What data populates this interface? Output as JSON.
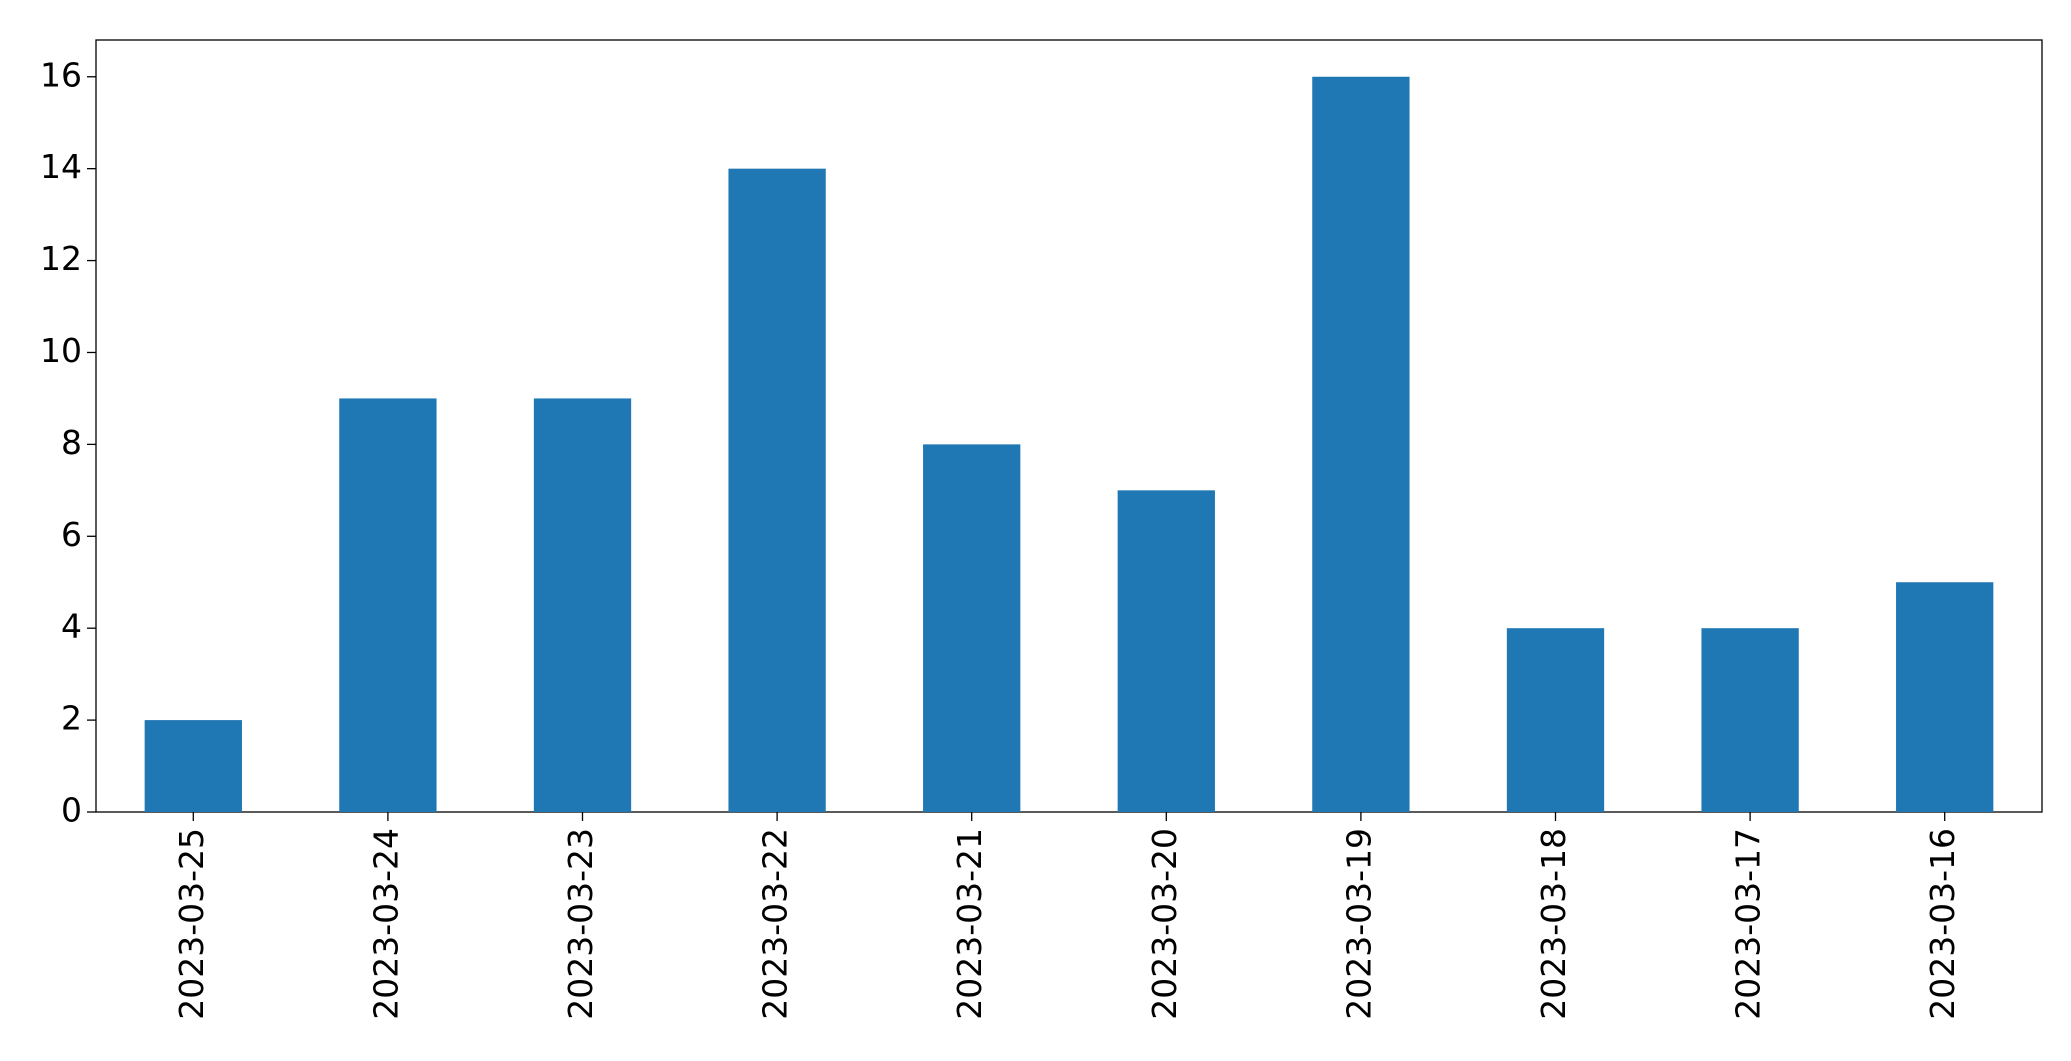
{
  "chart_data": {
    "type": "bar",
    "categories": [
      "2023-03-25",
      "2023-03-24",
      "2023-03-23",
      "2023-03-22",
      "2023-03-21",
      "2023-03-20",
      "2023-03-19",
      "2023-03-18",
      "2023-03-17",
      "2023-03-16"
    ],
    "values": [
      2,
      9,
      9,
      14,
      8,
      7,
      16,
      4,
      4,
      5
    ],
    "color": "#1f77b4",
    "ylim": [
      0,
      16.8
    ],
    "yticks": [
      0,
      2,
      4,
      6,
      8,
      10,
      12,
      14,
      16
    ],
    "grid": false
  }
}
